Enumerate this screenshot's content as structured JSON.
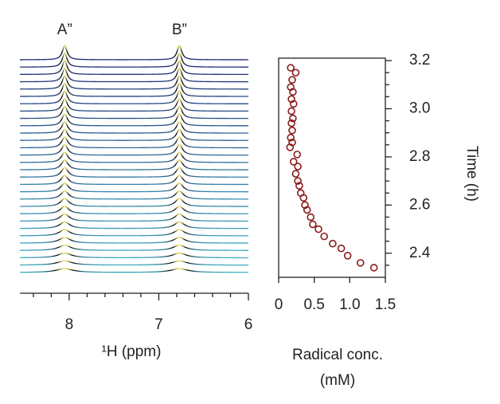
{
  "chart_data": [
    {
      "type": "spectra",
      "x_label": "¹H (ppm)",
      "xlim": [
        8.55,
        6
      ],
      "xticks": [
        8,
        7,
        6
      ],
      "xminor_ticks": [
        8.4,
        8.2,
        7.8,
        7.6,
        7.4,
        7.2,
        6.8,
        6.6,
        6.4,
        6.2
      ],
      "peaks": [
        {
          "label": "A”",
          "x": 8.05
        },
        {
          "label": "B”",
          "x": 6.77
        }
      ],
      "linewidths": [
        0.22,
        0.2,
        0.18,
        0.16,
        0.15,
        0.14,
        0.13,
        0.12,
        0.115,
        0.11,
        0.105,
        0.1,
        0.095,
        0.09,
        0.088,
        0.085,
        0.082,
        0.08,
        0.078,
        0.076,
        0.074,
        0.072,
        0.07,
        0.068,
        0.066,
        0.065,
        0.064,
        0.063,
        0.062,
        0.061
      ],
      "colors": {
        "bottom": "#48c4d8",
        "top": "#1e2a78",
        "peak": "#f2e85a"
      }
    },
    {
      "type": "scatter",
      "x_label": [
        "Radical conc.",
        "(mM)"
      ],
      "y_label": "Time (h)",
      "color": "#8b1a1a",
      "xlim": [
        0,
        1.5
      ],
      "xticks": [
        0,
        0.5,
        {
          "value": 1,
          "label": "1.0"
        },
        1.5
      ],
      "ylim": [
        2.3,
        3.21
      ],
      "yticks": [
        2.4,
        2.6,
        2.8,
        {
          "value": 3,
          "label": "3.0"
        },
        3.2
      ],
      "yminor_ticks": [
        2.35,
        2.45,
        2.5,
        2.55,
        2.65,
        2.7,
        2.75,
        2.85,
        2.9,
        2.95,
        3.05,
        3.1,
        3.15
      ],
      "x": [
        0.17,
        0.24,
        0.19,
        0.17,
        0.2,
        0.18,
        0.21,
        0.18,
        0.2,
        0.18,
        0.19,
        0.17,
        0.19,
        0.16,
        0.26,
        0.21,
        0.27,
        0.24,
        0.27,
        0.29,
        0.31,
        0.35,
        0.37,
        0.4,
        0.45,
        0.48,
        0.56,
        0.64,
        0.76,
        0.88,
        0.97,
        1.15,
        1.34
      ],
      "y": [
        3.17,
        3.15,
        3.12,
        3.09,
        3.07,
        3.04,
        3.02,
        2.99,
        2.96,
        2.94,
        2.91,
        2.88,
        2.86,
        2.84,
        2.81,
        2.78,
        2.76,
        2.73,
        2.7,
        2.68,
        2.65,
        2.63,
        2.6,
        2.58,
        2.55,
        2.52,
        2.5,
        2.47,
        2.44,
        2.42,
        2.39,
        2.36,
        2.34
      ]
    }
  ]
}
